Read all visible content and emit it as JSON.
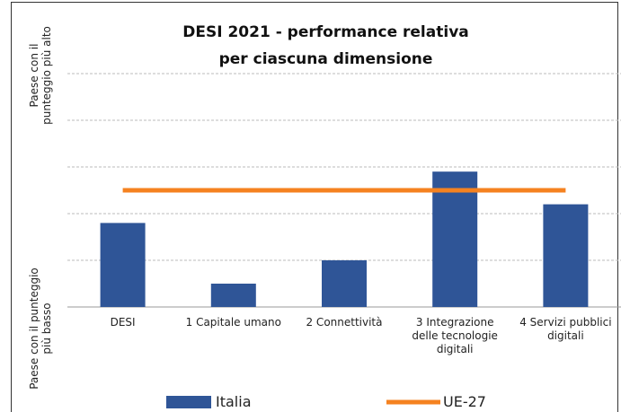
{
  "chart_data": {
    "type": "bar",
    "title": [
      "DESI 2021 - performance relativa",
      "per ciascuna dimensione"
    ],
    "y_label_top": "Paese con il punteggio più alto",
    "y_label_bottom": "Paese con il punteggio più basso",
    "categories": [
      "DESI",
      "1 Capitale umano",
      "2 Connettività",
      "3 Integrazione delle tecnologie digitali",
      "4 Servizi pubblici digitali"
    ],
    "series": [
      {
        "name": "Italia",
        "type": "bar",
        "color": "#2f5597",
        "values": [
          1.8,
          0.5,
          1.0,
          2.9,
          2.2
        ]
      },
      {
        "name": "UE-27",
        "type": "line",
        "color": "#f58220",
        "values": [
          2.5,
          2.5,
          2.5,
          2.5,
          2.5
        ]
      }
    ],
    "ylim": [
      0,
      5
    ],
    "yticks": [
      0,
      1,
      2,
      3,
      4,
      5
    ],
    "grid": true,
    "legend": "bottom"
  }
}
